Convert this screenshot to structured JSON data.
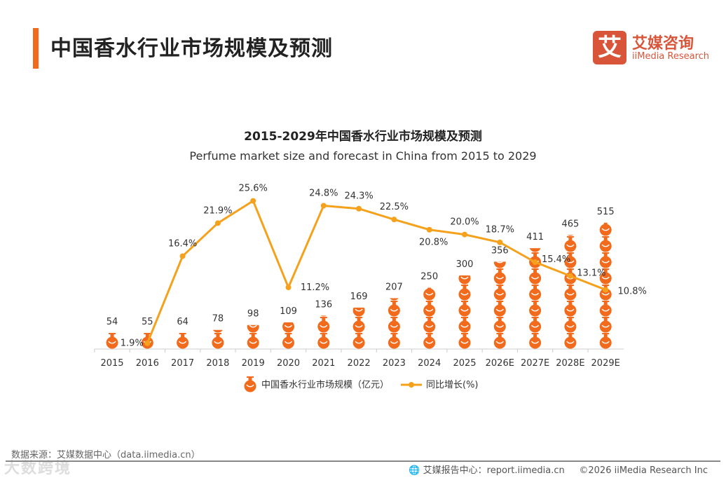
{
  "header": {
    "title": "中国香水行业市场规模及预测"
  },
  "logo": {
    "mark": "艾",
    "name_cn": "艾媒咨询",
    "name_en": "iiMedia Research",
    "color": "#d9553a"
  },
  "chart_data": {
    "type": "bar",
    "title": "2015-2029年中国香水行业市场规模及预测",
    "subtitle": "Perfume market size and forecast in China from 2015 to 2029",
    "categories": [
      "2015",
      "2016",
      "2017",
      "2018",
      "2019",
      "2020",
      "2021",
      "2022",
      "2023",
      "2024",
      "2025",
      "2026E",
      "2027E",
      "2028E",
      "2029E"
    ],
    "series": [
      {
        "name": "中国香水行业市场规模（亿元）",
        "kind": "pictogram-bar",
        "color": "#f26b1d",
        "values": [
          54,
          55,
          64,
          78,
          98,
          109,
          136,
          169,
          207,
          250,
          300,
          356,
          411,
          465,
          515
        ]
      },
      {
        "name": "同比增长(%)",
        "kind": "line",
        "color": "#f5a11c",
        "values": [
          null,
          1.9,
          16.4,
          21.9,
          25.6,
          11.2,
          24.8,
          24.3,
          22.5,
          20.8,
          20.0,
          18.7,
          15.4,
          13.1,
          10.8
        ],
        "labels": [
          "",
          "1.9%",
          "16.4%",
          "21.9%",
          "25.6%",
          "11.2%",
          "24.8%",
          "24.3%",
          "22.5%",
          "20.8%",
          "20.0%",
          "18.7%",
          "15.4%",
          "13.1%",
          "10.8%"
        ]
      }
    ],
    "legend_position": "bottom",
    "grid": false
  },
  "footer": {
    "source": "数据来源：艾媒数据中心（data.iimedia.cn）",
    "report_center": "艾媒报告中心：report.iimedia.cn",
    "copyright": "©2026  iiMedia Research  Inc",
    "watermark": "大数跨境"
  }
}
